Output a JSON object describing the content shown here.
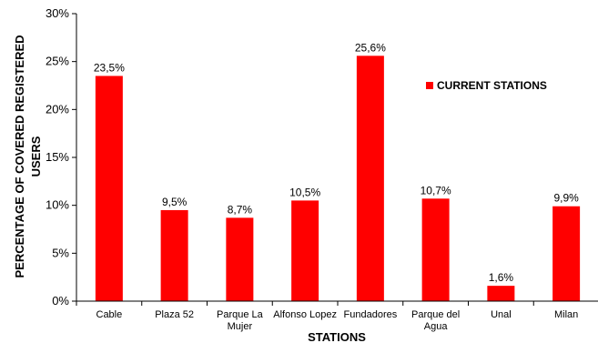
{
  "chart_data": {
    "type": "bar",
    "categories": [
      "Cable",
      "Plaza 52",
      "Parque La\nMujer",
      "Alfonso Lopez",
      "Fundadores",
      "Parque del\nAgua",
      "Unal",
      "Milan"
    ],
    "series": [
      {
        "name": "CURRENT STATIONS",
        "color": "#ff0000",
        "values": [
          23.5,
          9.5,
          8.7,
          10.5,
          25.6,
          10.7,
          1.6,
          9.9
        ],
        "labels": [
          "23,5%",
          "9,5%",
          "8,7%",
          "10,5%",
          "25,6%",
          "10,7%",
          "1,6%",
          "9,9%"
        ]
      }
    ],
    "xlabel": "STATIONS",
    "ylabel": [
      "PERCENTAGE OF COVERED REGISTERED",
      "USERS"
    ],
    "ylim": [
      0,
      30
    ],
    "yticks": [
      0,
      5,
      10,
      15,
      20,
      25,
      30
    ],
    "ytick_labels": [
      "0%",
      "5%",
      "10%",
      "15%",
      "20%",
      "25%",
      "30%"
    ],
    "grid": false,
    "legend_position": "top-right"
  }
}
